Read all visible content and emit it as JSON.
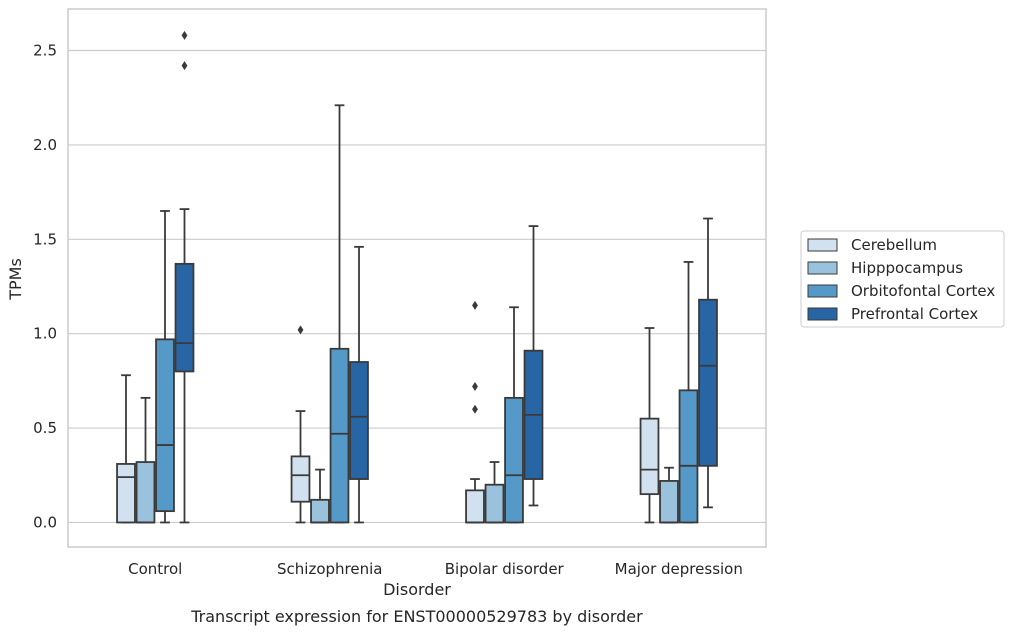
{
  "chart_data": {
    "type": "box",
    "title": "",
    "caption": "Transcript expression for ENST00000529783 by disorder",
    "xlabel": "Disorder",
    "ylabel": "TPMs",
    "ylim": [
      -0.13,
      2.72
    ],
    "yticks": [
      0.0,
      0.5,
      1.0,
      1.5,
      2.0,
      2.5
    ],
    "ytick_labels": [
      "0.0",
      "0.5",
      "1.0",
      "1.5",
      "2.0",
      "2.5"
    ],
    "grid": "horizontal",
    "legend_position": "right",
    "categories": [
      "Control",
      "Schizophrenia",
      "Bipolar disorder",
      "Major depression"
    ],
    "series": [
      {
        "name": "Cerebellum",
        "color": "#d1e1ef",
        "boxes": [
          {
            "whislo": 0.0,
            "q1": 0.0,
            "med": 0.24,
            "q3": 0.31,
            "whishi": 0.78,
            "fliers": []
          },
          {
            "whislo": 0.0,
            "q1": 0.11,
            "med": 0.25,
            "q3": 0.35,
            "whishi": 0.59,
            "fliers": [
              1.02
            ]
          },
          {
            "whislo": 0.0,
            "q1": 0.0,
            "med": 0.0,
            "q3": 0.17,
            "whishi": 0.23,
            "fliers": [
              0.6,
              0.72,
              1.15
            ]
          },
          {
            "whislo": 0.0,
            "q1": 0.15,
            "med": 0.28,
            "q3": 0.55,
            "whishi": 1.03,
            "fliers": []
          }
        ]
      },
      {
        "name": "Hipppocampus",
        "color": "#9ac2dd",
        "boxes": [
          {
            "whislo": 0.0,
            "q1": 0.0,
            "med": 0.0,
            "q3": 0.32,
            "whishi": 0.66,
            "fliers": []
          },
          {
            "whislo": 0.0,
            "q1": 0.0,
            "med": 0.0,
            "q3": 0.12,
            "whishi": 0.28,
            "fliers": []
          },
          {
            "whislo": 0.0,
            "q1": 0.0,
            "med": 0.0,
            "q3": 0.2,
            "whishi": 0.32,
            "fliers": []
          },
          {
            "whislo": 0.0,
            "q1": 0.0,
            "med": 0.0,
            "q3": 0.22,
            "whishi": 0.29,
            "fliers": []
          }
        ]
      },
      {
        "name": "Orbitofontal Cortex",
        "color": "#5499c7",
        "boxes": [
          {
            "whislo": 0.0,
            "q1": 0.06,
            "med": 0.41,
            "q3": 0.97,
            "whishi": 1.65,
            "fliers": []
          },
          {
            "whislo": 0.0,
            "q1": 0.0,
            "med": 0.47,
            "q3": 0.92,
            "whishi": 2.21,
            "fliers": []
          },
          {
            "whislo": 0.0,
            "q1": 0.0,
            "med": 0.25,
            "q3": 0.66,
            "whishi": 1.14,
            "fliers": []
          },
          {
            "whislo": 0.0,
            "q1": 0.0,
            "med": 0.3,
            "q3": 0.7,
            "whishi": 1.38,
            "fliers": []
          }
        ]
      },
      {
        "name": "Prefrontal Cortex",
        "color": "#2865a4",
        "boxes": [
          {
            "whislo": 0.0,
            "q1": 0.8,
            "med": 0.95,
            "q3": 1.37,
            "whishi": 1.66,
            "fliers": [
              2.42,
              2.58
            ]
          },
          {
            "whislo": 0.0,
            "q1": 0.23,
            "med": 0.56,
            "q3": 0.85,
            "whishi": 1.46,
            "fliers": []
          },
          {
            "whislo": 0.09,
            "q1": 0.23,
            "med": 0.57,
            "q3": 0.91,
            "whishi": 1.57,
            "fliers": []
          },
          {
            "whislo": 0.08,
            "q1": 0.3,
            "med": 0.83,
            "q3": 1.18,
            "whishi": 1.61,
            "fliers": []
          }
        ]
      }
    ]
  }
}
